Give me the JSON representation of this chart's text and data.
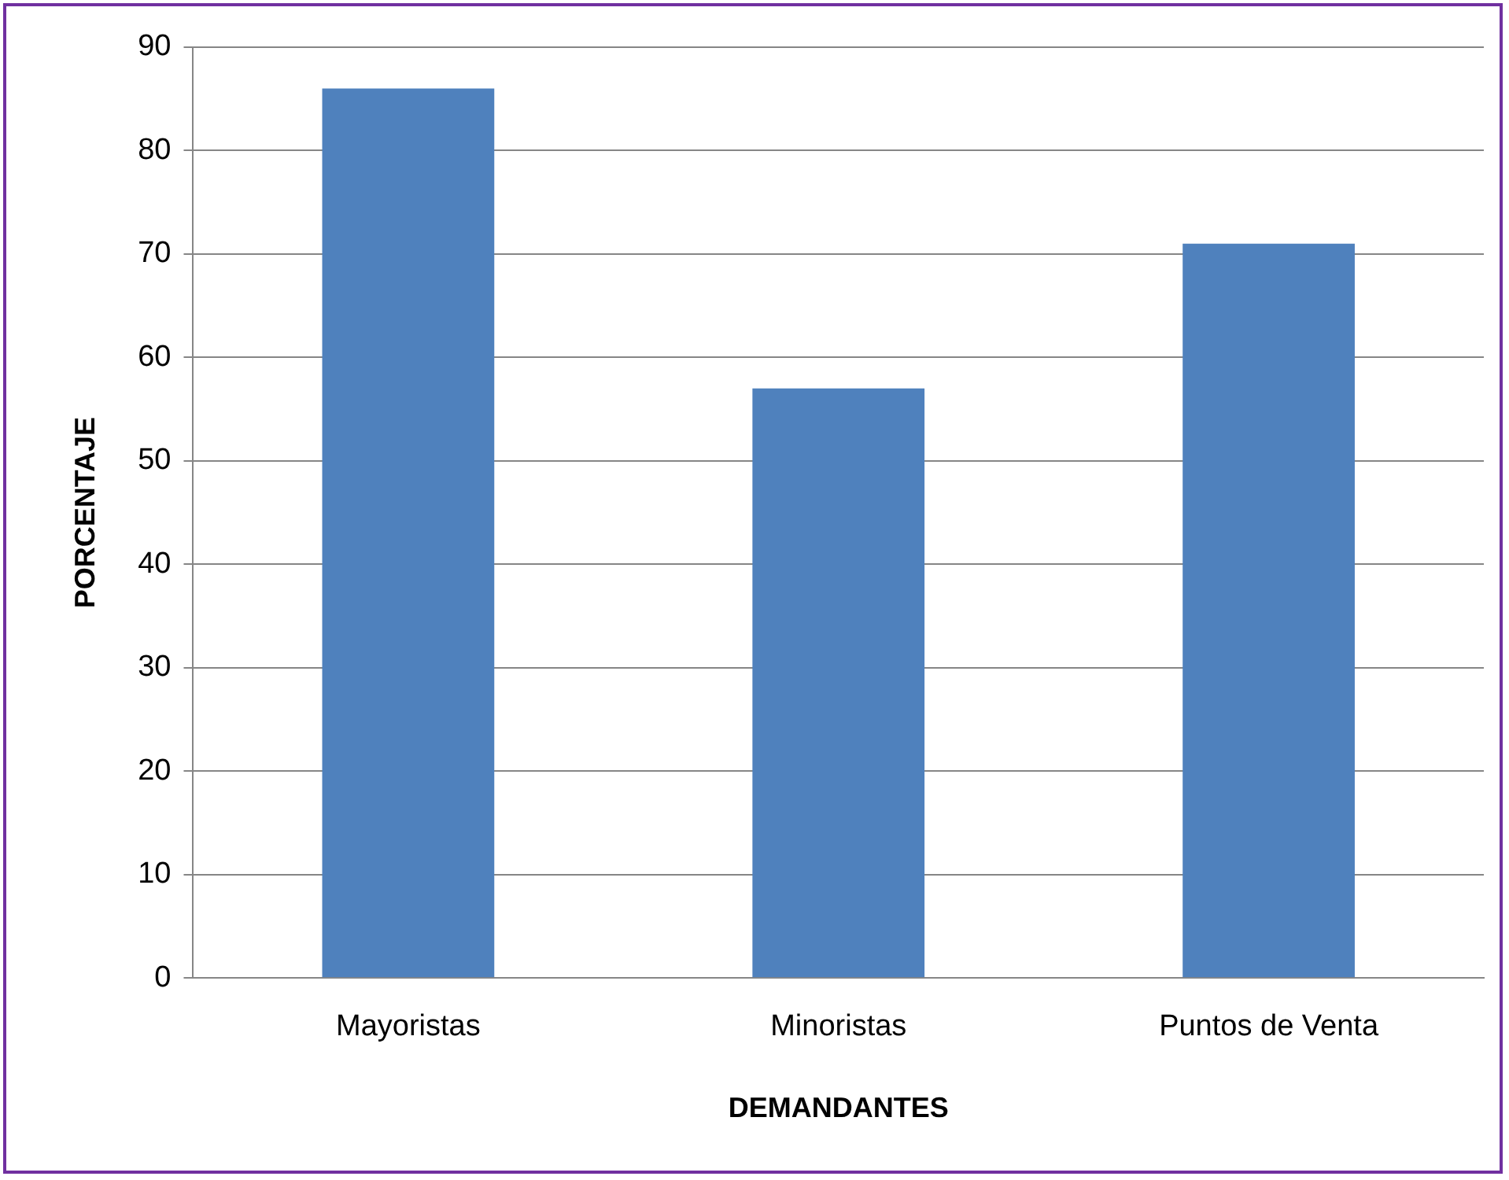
{
  "chart_data": {
    "type": "bar",
    "xlabel": "DEMANDANTES",
    "ylabel": "PORCENTAJE",
    "categories": [
      "Mayoristas",
      "Minoristas",
      "Puntos de Venta"
    ],
    "values": [
      86,
      57,
      71
    ],
    "color": "#4f81bd",
    "ylim": [
      0,
      90
    ],
    "yticks": [
      0,
      10,
      20,
      30,
      40,
      50,
      60,
      70,
      80,
      90
    ],
    "grid": "y",
    "legend": false
  }
}
